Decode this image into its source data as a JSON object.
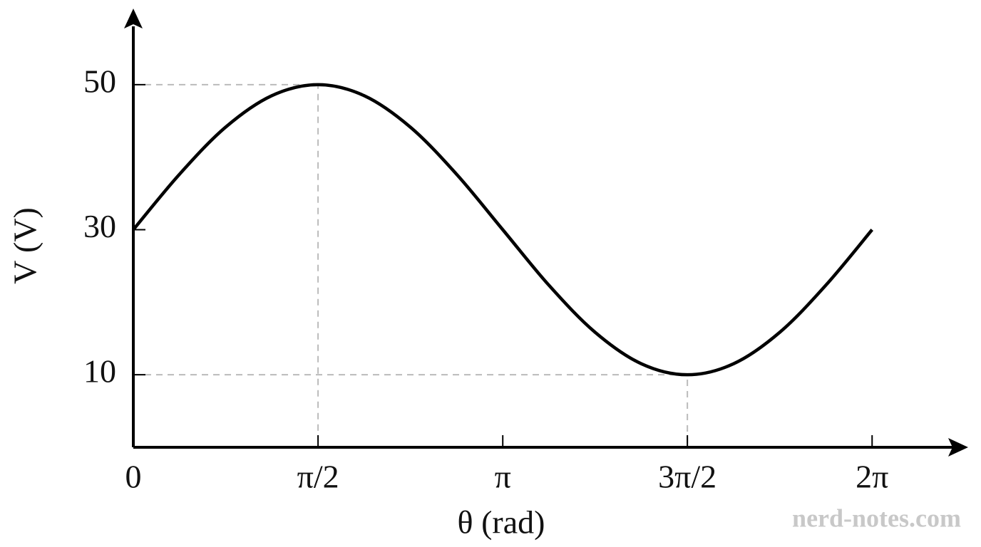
{
  "chart_data": {
    "type": "line",
    "x_label": "θ (rad)",
    "y_label": "V (V)",
    "x": [
      0,
      0.393,
      0.785,
      1.178,
      1.571,
      1.963,
      2.356,
      2.749,
      3.142,
      3.534,
      3.927,
      4.32,
      4.712,
      5.105,
      5.498,
      5.89,
      6.283
    ],
    "series": [
      {
        "color": "#000000",
        "values": [
          30,
          37.65,
          44.14,
          48.48,
          50,
          48.48,
          44.14,
          37.65,
          30,
          22.35,
          15.86,
          11.52,
          10,
          11.52,
          15.86,
          22.35,
          30
        ]
      }
    ],
    "xlim": [
      0,
      7.1
    ],
    "ylim": [
      0,
      60
    ],
    "xticks": [
      0,
      {
        "value": 1.571,
        "label": "π/2"
      },
      {
        "value": 3.142,
        "label": "π"
      },
      {
        "value": 4.712,
        "label": "3π/2"
      },
      {
        "value": 6.283,
        "label": "2π"
      }
    ],
    "yticks": [
      10,
      30,
      50
    ],
    "guide_lines": true,
    "guide_color": "#bbbbbb",
    "watermark": "nerd-notes.com"
  }
}
